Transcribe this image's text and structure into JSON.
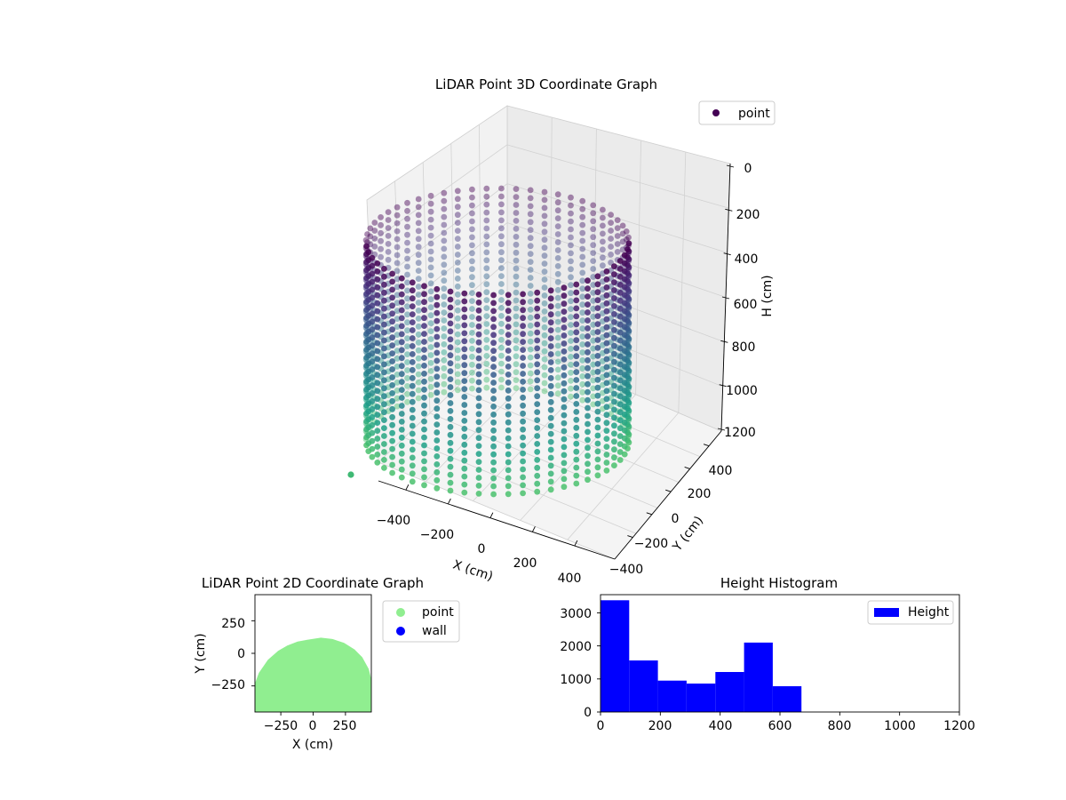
{
  "chart_data": [
    {
      "type": "scatter",
      "subtype": "3d",
      "title": "LiDAR Point 3D Coordinate Graph",
      "xlabel": "X (cm)",
      "ylabel": "Y (cm)",
      "zlabel": "H (cm)",
      "xticks": [
        "−400",
        "−200",
        "0",
        "200",
        "400"
      ],
      "yticks": [
        "400",
        "200",
        "0",
        "−200",
        "−400"
      ],
      "zticks": [
        "0",
        "200",
        "400",
        "600",
        "800",
        "1000",
        "1200"
      ],
      "xlim": [
        -450,
        450
      ],
      "ylim": [
        -450,
        450
      ],
      "zlim": [
        0,
        1200
      ],
      "z_inverted": true,
      "legend": [
        "point"
      ],
      "legend_loc": "upper right",
      "colormap": "viridis",
      "color_by": "height",
      "series": [
        {
          "name": "point",
          "shape": "hollow cylinder, radius ≈ 400",
          "center": [
            0,
            0
          ],
          "radius": 400,
          "height_range": [
            0,
            700
          ],
          "angle_range_deg": [
            0,
            360
          ],
          "outlier": [
            -500,
            500,
            750
          ]
        }
      ],
      "grid": true
    },
    {
      "type": "scatter",
      "title": "LiDAR Point 2D Coordinate Graph",
      "xlabel": "X (cm)",
      "ylabel": "Y (cm)",
      "xticks": [
        "−250",
        "0",
        "250"
      ],
      "yticks": [
        "250",
        "0",
        "−250"
      ],
      "xlim": [
        -450,
        450
      ],
      "ylim": [
        -450,
        450
      ],
      "legend": [
        "point",
        "wall"
      ],
      "legend_loc": "outside upper right",
      "series": [
        {
          "name": "point",
          "color": "#90ee90",
          "outline": [
            [
              -450,
              -450
            ],
            [
              -450,
              -230
            ],
            [
              -420,
              -150
            ],
            [
              -350,
              -50
            ],
            [
              -270,
              20
            ],
            [
              -200,
              60
            ],
            [
              -120,
              90
            ],
            [
              -40,
              105
            ],
            [
              60,
              120
            ],
            [
              150,
              110
            ],
            [
              240,
              80
            ],
            [
              320,
              30
            ],
            [
              380,
              -30
            ],
            [
              430,
              -120
            ],
            [
              450,
              -200
            ],
            [
              450,
              -450
            ]
          ]
        },
        {
          "name": "wall",
          "color": "#0000ff",
          "points": []
        }
      ]
    },
    {
      "type": "bar",
      "subtype": "histogram",
      "title": "Height Histogram",
      "xlabel": "",
      "ylabel": "",
      "xticks": [
        "0",
        "200",
        "400",
        "600",
        "800",
        "1000",
        "1200"
      ],
      "yticks": [
        "0",
        "1000",
        "2000",
        "3000"
      ],
      "xlim": [
        0,
        1200
      ],
      "ylim": [
        0,
        3550
      ],
      "legend": [
        "Height"
      ],
      "legend_loc": "upper right",
      "color": "#0000ff",
      "bins": [
        0,
        96,
        192,
        288,
        384,
        480,
        576,
        672
      ],
      "counts": [
        3380,
        1560,
        950,
        860,
        1210,
        2100,
        780
      ]
    }
  ]
}
